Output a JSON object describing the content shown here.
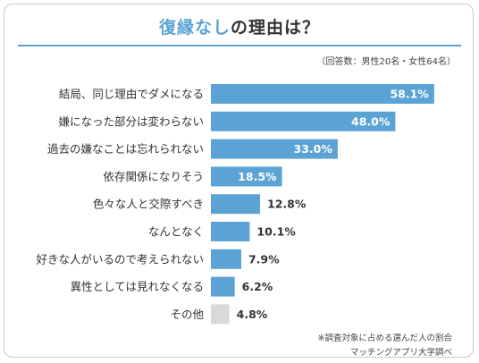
{
  "title": {
    "highlight": "復縁なし",
    "rest": "の理由は？"
  },
  "respondents_note": "（回答数：男性20名・女性64名）",
  "footnote": "※調査対象に占める選んだ人の割合",
  "source": "マッチングアプリ大学調べ",
  "colors": {
    "accent": "#5ba3d4",
    "bar": "#5ba3d4",
    "other_bar": "#d9d9d9"
  },
  "chart_data": {
    "type": "bar",
    "orientation": "horizontal",
    "categories": [
      "結局、同じ理由でダメになる",
      "嫌になった部分は変わらない",
      "過去の嫌なことは忘れられない",
      "依存関係になりそう",
      "色々な人と交際すべき",
      "なんとなく",
      "好きな人がいるので考えられない",
      "異性としては見れなくなる",
      "その他"
    ],
    "values": [
      58.1,
      48.0,
      33.0,
      18.5,
      12.8,
      10.1,
      7.9,
      6.2,
      4.8
    ],
    "labels": [
      "58.1%",
      "48.0%",
      "33.0%",
      "18.5%",
      "12.8%",
      "10.1%",
      "7.9%",
      "6.2%",
      "4.8%"
    ],
    "unit": "%"
  }
}
